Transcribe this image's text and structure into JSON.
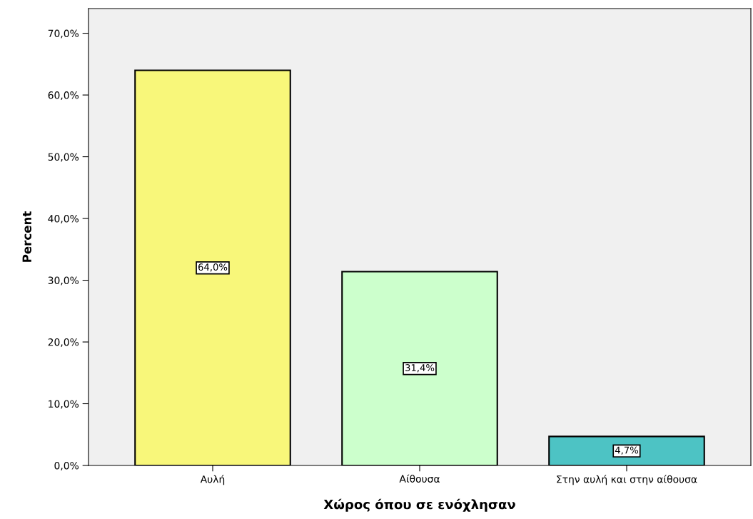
{
  "chart_data": {
    "type": "bar",
    "xlabel": "Χώρος όπου σε ενόχλησαν",
    "ylabel": "Percent",
    "categories": [
      "Αυλή",
      "Αίθουσα",
      "Στην αυλή και στην αίθουσα"
    ],
    "values": [
      64.0,
      31.4,
      4.7
    ],
    "colors": [
      "#f8f77a",
      "#ccffcc",
      "#4dc3c4"
    ],
    "value_labels": [
      "64,0%",
      "31,4%",
      "4,7%"
    ],
    "ylim": [
      0,
      74
    ],
    "yticks": [
      {
        "value": 0,
        "label": "0,0%"
      },
      {
        "value": 10,
        "label": "10,0%"
      },
      {
        "value": 20,
        "label": "20,0%"
      },
      {
        "value": 30,
        "label": "30,0%"
      },
      {
        "value": 40,
        "label": "40,0%"
      },
      {
        "value": 50,
        "label": "50,0%"
      },
      {
        "value": 60,
        "label": "60,0%"
      },
      {
        "value": 70,
        "label": "70,0%"
      }
    ],
    "grid": false
  }
}
